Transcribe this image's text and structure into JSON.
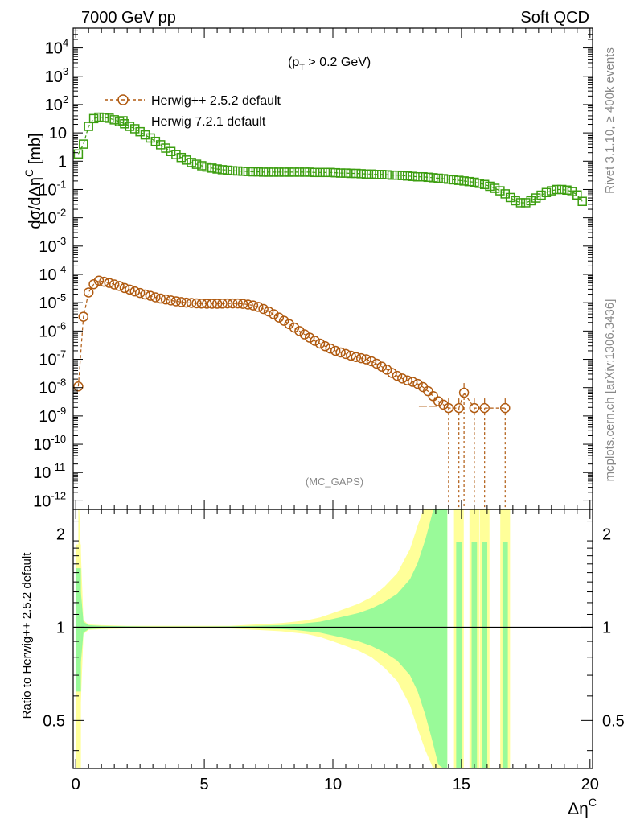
{
  "header": {
    "left": "7000 GeV pp",
    "right": "Soft QCD"
  },
  "side": {
    "top": "Rivet 3.1.10, ≥ 400k events",
    "bottom": "mcplots.cern.ch [arXiv:1306.3436]"
  },
  "chart_data": [
    {
      "type": "scatter",
      "panel": "main",
      "annotation": "(p_T > 0.2 GeV)",
      "annotation_main": "(p",
      "annotation_sub": "T",
      "annotation_rest": " > 0.2 GeV)",
      "analysis_tag": "(MC_GAPS)",
      "ylabel": "dσ/dΔη^C [mb]",
      "ylabel_main": "dσ/dΔη",
      "ylabel_sup": "C",
      "ylabel_unit": " [mb]",
      "xlim": [
        -0.1,
        20.1
      ],
      "ylim": [
        5e-13,
        50000.0
      ],
      "yscale": "log",
      "legend_position": "top-left",
      "x": [
        0.1,
        0.3,
        0.5,
        0.7,
        0.9,
        1.1,
        1.3,
        1.5,
        1.7,
        1.9,
        2.1,
        2.3,
        2.5,
        2.7,
        2.9,
        3.1,
        3.3,
        3.5,
        3.7,
        3.9,
        4.1,
        4.3,
        4.5,
        4.7,
        4.9,
        5.1,
        5.3,
        5.5,
        5.7,
        5.9,
        6.1,
        6.3,
        6.5,
        6.7,
        6.9,
        7.1,
        7.3,
        7.5,
        7.7,
        7.9,
        8.1,
        8.3,
        8.5,
        8.7,
        8.9,
        9.1,
        9.3,
        9.5,
        9.7,
        9.9,
        10.1,
        10.3,
        10.5,
        10.7,
        10.9,
        11.1,
        11.3,
        11.5,
        11.7,
        11.9,
        12.1,
        12.3,
        12.5,
        12.7,
        12.9,
        13.1,
        13.3,
        13.5,
        13.7,
        13.9,
        14.1,
        14.3,
        14.5,
        14.7,
        14.9,
        15.1,
        15.3,
        15.5,
        15.7,
        15.9,
        16.1,
        16.3,
        16.5,
        16.7,
        16.9,
        17.1,
        17.3,
        17.5,
        17.7,
        17.9,
        18.1,
        18.3,
        18.5,
        18.7,
        18.9,
        19.1,
        19.3,
        19.5,
        19.7
      ],
      "series": [
        {
          "name": "Herwig++ 2.5.2 default",
          "color": "#b05a10",
          "marker": "circle",
          "values": [
            1.1e-08,
            3.2e-06,
            2.3e-05,
            4.5e-05,
            6e-05,
            5.5e-05,
            5e-05,
            4.4e-05,
            3.9e-05,
            3.3e-05,
            2.9e-05,
            2.5e-05,
            2.2e-05,
            1.95e-05,
            1.75e-05,
            1.55e-05,
            1.4e-05,
            1.3e-05,
            1.2e-05,
            1.12e-05,
            1.05e-05,
            1e-05,
            9.8e-06,
            9.5e-06,
            9.3e-06,
            9.2e-06,
            9.2e-06,
            9.2e-06,
            9.3e-06,
            9.4e-06,
            9.4e-06,
            9.4e-06,
            9.1e-06,
            8.6e-06,
            8e-06,
            7.1e-06,
            6e-06,
            4.9e-06,
            3.9e-06,
            3e-06,
            2.3e-06,
            1.75e-06,
            1.32e-06,
            1e-06,
            7.6e-07,
            5.8e-07,
            4.5e-07,
            3.6e-07,
            2.9e-07,
            2.4e-07,
            2e-07,
            1.75e-07,
            1.55e-07,
            1.35e-07,
            1.2e-07,
            1.1e-07,
            1e-07,
            8.5e-08,
            7e-08,
            5.5e-08,
            4.3e-08,
            3.3e-08,
            2.6e-08,
            2.1e-08,
            1.8e-08,
            1.6e-08,
            1.35e-08,
            1.05e-08,
            7.5e-09,
            5e-09,
            3.3e-09,
            2.5e-09,
            1.9e-09,
            null,
            1.9e-09,
            6.6e-09,
            null,
            1.9e-09,
            null,
            1.9e-09,
            null,
            null,
            null,
            1.9e-09,
            null,
            null,
            null,
            null,
            null,
            null,
            null,
            null,
            null,
            null,
            null,
            null,
            null,
            null,
            null
          ]
        },
        {
          "name": "Herwig 7.2.1 default",
          "color": "#3c9e10",
          "marker": "open-square",
          "values": [
            1.8,
            4.0,
            17,
            32,
            36,
            35,
            33,
            29,
            25,
            21,
            17,
            14,
            11,
            8.5,
            6.6,
            5.0,
            3.8,
            2.9,
            2.2,
            1.7,
            1.35,
            1.1,
            0.9,
            0.78,
            0.69,
            0.62,
            0.57,
            0.53,
            0.5,
            0.48,
            0.46,
            0.45,
            0.44,
            0.43,
            0.42,
            0.42,
            0.41,
            0.41,
            0.41,
            0.41,
            0.41,
            0.41,
            0.41,
            0.41,
            0.41,
            0.41,
            0.4,
            0.4,
            0.4,
            0.4,
            0.39,
            0.38,
            0.38,
            0.37,
            0.37,
            0.36,
            0.35,
            0.35,
            0.34,
            0.34,
            0.33,
            0.32,
            0.32,
            0.31,
            0.3,
            0.29,
            0.28,
            0.28,
            0.27,
            0.26,
            0.25,
            0.24,
            0.23,
            0.22,
            0.21,
            0.2,
            0.19,
            0.18,
            0.165,
            0.15,
            0.13,
            0.11,
            0.09,
            0.07,
            0.052,
            0.04,
            0.034,
            0.034,
            0.04,
            0.05,
            0.063,
            0.078,
            0.09,
            0.1,
            0.1,
            0.095,
            0.084,
            0.064,
            0.038
          ]
        }
      ]
    },
    {
      "type": "area",
      "panel": "ratio",
      "ylabel": "Ratio to Herwig++ 2.5.2 default",
      "xlabel": "Δη^C",
      "xlabel_main": "Δη",
      "xlabel_sup": "C",
      "xlim": [
        -0.1,
        20.1
      ],
      "ylim": [
        0.35,
        2.4
      ],
      "yscale": "log",
      "x_ticks": [
        0,
        5,
        10,
        15,
        20
      ],
      "x_tick_labels": [
        "0",
        "5",
        "10",
        "15",
        "20"
      ],
      "y_ticks": [
        0.5,
        1,
        2
      ],
      "y_tick_labels": [
        "0.5",
        "1",
        "2"
      ],
      "reference_line": 1,
      "bands": [
        {
          "name": "stat",
          "color": "#99fa99"
        },
        {
          "name": "total",
          "color": "#ffff99"
        }
      ],
      "band_x": [
        0.1,
        0.3,
        0.5,
        1,
        2,
        3,
        4,
        5,
        6,
        7,
        8,
        8.5,
        9,
        9.5,
        10,
        10.5,
        11,
        11.5,
        12,
        12.5,
        13,
        13.3,
        13.6,
        13.9,
        14.1,
        14.3,
        14.45
      ],
      "inner_band": [
        0.62,
        0.96,
        0.985,
        0.99,
        0.993,
        0.995,
        0.995,
        0.995,
        0.994,
        0.99,
        0.985,
        0.98,
        0.97,
        0.96,
        0.94,
        0.92,
        0.9,
        0.87,
        0.83,
        0.78,
        0.7,
        0.62,
        0.52,
        0.42,
        0.36,
        0.35,
        0.35
      ],
      "outer_band": [
        0.35,
        0.95,
        0.98,
        0.985,
        0.99,
        0.99,
        0.99,
        0.99,
        0.99,
        0.98,
        0.97,
        0.96,
        0.95,
        0.93,
        0.9,
        0.87,
        0.84,
        0.8,
        0.74,
        0.67,
        0.56,
        0.47,
        0.4,
        0.35,
        0.35,
        0.35,
        0.35
      ],
      "isolated_bins": [
        14.9,
        15.5,
        15.9,
        16.7
      ]
    }
  ]
}
